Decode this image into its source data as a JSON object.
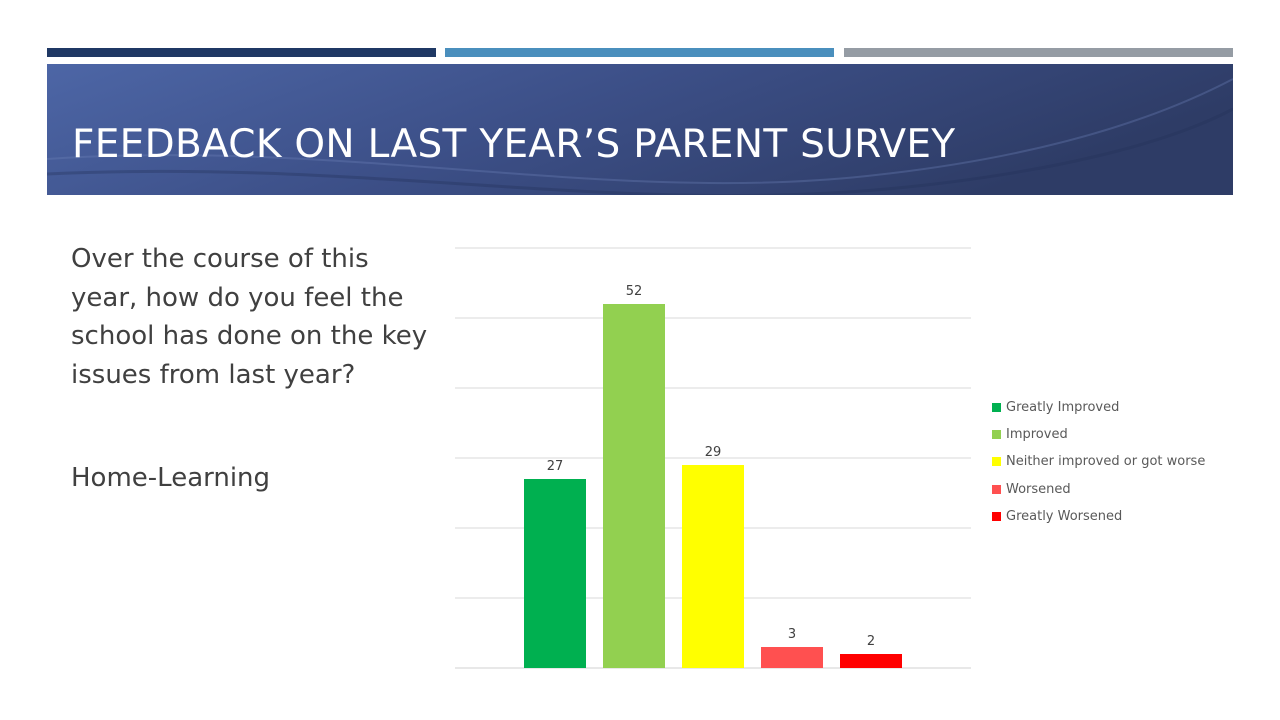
{
  "slide": {
    "title": "FEEDBACK ON LAST YEAR’S PARENT SURVEY",
    "question": "Over the course of this year, how do you feel the school has done on the key issues from last year?",
    "topic": "Home-Learning",
    "accent_colors": [
      "#1f3864",
      "#4a8fbd",
      "#959ca4"
    ],
    "banner_color": "#3b4f86"
  },
  "chart_data": {
    "type": "bar",
    "title": "",
    "xlabel": "",
    "ylabel": "",
    "ylim": [
      0,
      60
    ],
    "grid": true,
    "legend_position": "right",
    "categories": [
      "Greatly Improved",
      "Improved",
      "Neither improved or got worse",
      "Worsened",
      "Greatly Worsened"
    ],
    "values": [
      27,
      52,
      29,
      3,
      2
    ],
    "colors": [
      "#00b050",
      "#92d050",
      "#ffff00",
      "#ff5050",
      "#ff0000"
    ]
  }
}
